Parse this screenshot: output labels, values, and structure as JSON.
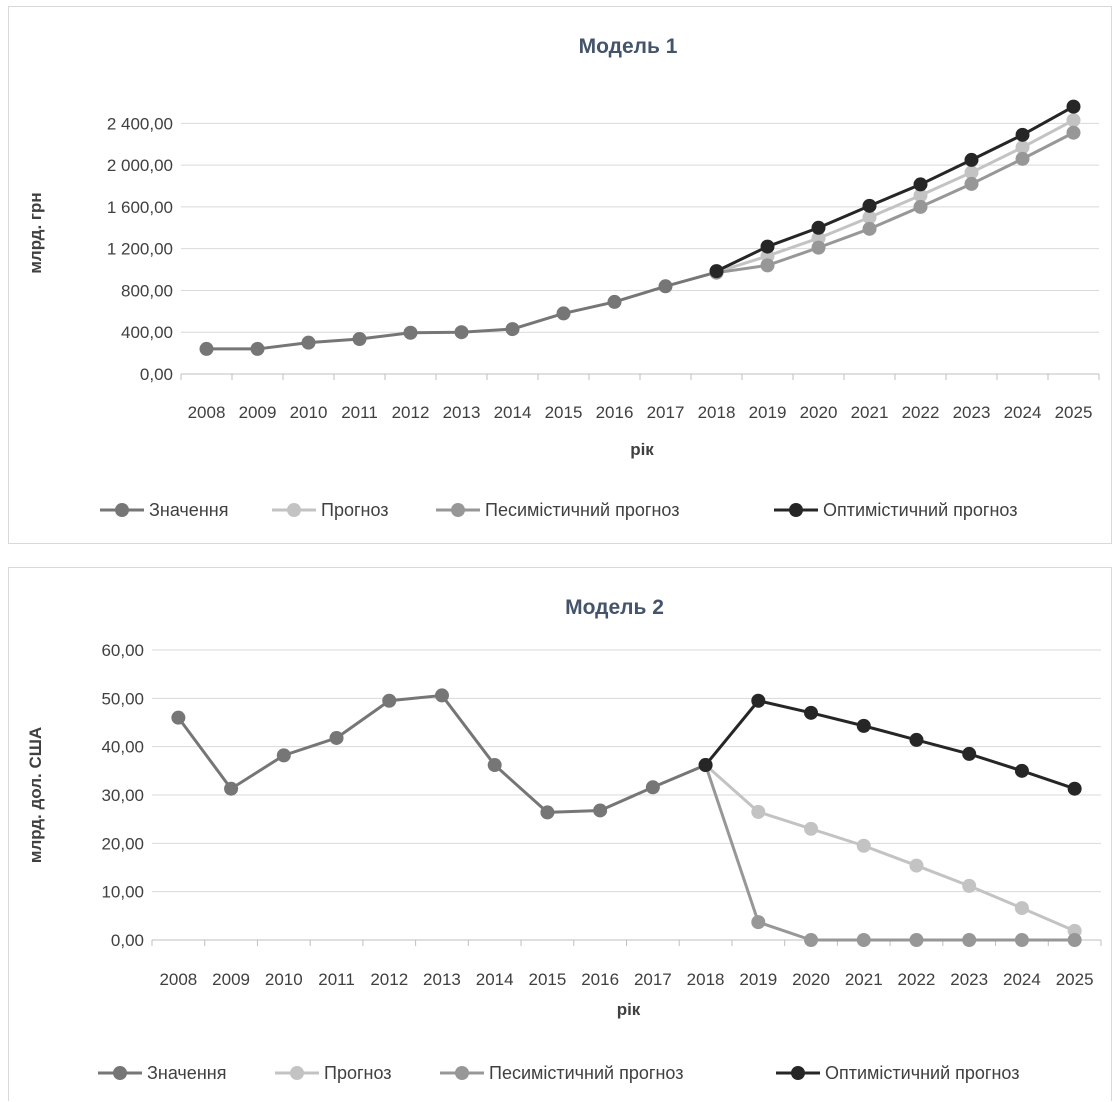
{
  "chart_data": [
    {
      "type": "line",
      "title": "Модель 1",
      "xlabel": "рік",
      "ylabel": "млрд. грн",
      "categories": [
        "2008",
        "2009",
        "2010",
        "2011",
        "2012",
        "2013",
        "2014",
        "2015",
        "2016",
        "2017",
        "2018",
        "2019",
        "2020",
        "2021",
        "2022",
        "2023",
        "2024",
        "2025"
      ],
      "y_ticks": [
        "0,00",
        "400,00",
        "800,00",
        "1 200,00",
        "1 600,00",
        "2 000,00",
        "2 400,00"
      ],
      "ylim": [
        0,
        2700
      ],
      "grid": true,
      "legend": "bottom",
      "series": [
        {
          "name": "Значення",
          "color": "#767676",
          "values": [
            240,
            240,
            300,
            335,
            395,
            400,
            430,
            580,
            690,
            840,
            975,
            null,
            null,
            null,
            null,
            null,
            null,
            null
          ]
        },
        {
          "name": "Прогноз",
          "color": "#c3c3c3",
          "values": [
            null,
            null,
            null,
            null,
            null,
            null,
            null,
            null,
            null,
            null,
            975,
            1130,
            1300,
            1500,
            1710,
            1930,
            2170,
            2430
          ]
        },
        {
          "name": "Песимістичний прогноз",
          "color": "#979797",
          "values": [
            null,
            null,
            null,
            null,
            null,
            null,
            null,
            null,
            null,
            null,
            970,
            1040,
            1210,
            1390,
            1600,
            1820,
            2060,
            2310
          ]
        },
        {
          "name": "Оптимістичний прогноз",
          "color": "#262626",
          "values": [
            null,
            null,
            null,
            null,
            null,
            null,
            null,
            null,
            null,
            null,
            985,
            1220,
            1400,
            1610,
            1815,
            2050,
            2290,
            2560
          ]
        }
      ]
    },
    {
      "type": "line",
      "title": "Модель 2",
      "xlabel": "рік",
      "ylabel": "млрд. дол. США",
      "categories": [
        "2008",
        "2009",
        "2010",
        "2011",
        "2012",
        "2013",
        "2014",
        "2015",
        "2016",
        "2017",
        "2018",
        "2019",
        "2020",
        "2021",
        "2022",
        "2023",
        "2024",
        "2025"
      ],
      "y_ticks": [
        "0,00",
        "10,00",
        "20,00",
        "30,00",
        "40,00",
        "50,00",
        "60,00"
      ],
      "ylim": [
        0,
        60
      ],
      "grid": true,
      "legend": "bottom",
      "series": [
        {
          "name": "Значення",
          "color": "#767676",
          "values": [
            46,
            31.3,
            38.2,
            41.8,
            49.5,
            50.6,
            36.2,
            26.4,
            26.8,
            31.6,
            36.2,
            null,
            null,
            null,
            null,
            null,
            null,
            null
          ]
        },
        {
          "name": "Прогноз",
          "color": "#c3c3c3",
          "values": [
            null,
            null,
            null,
            null,
            null,
            null,
            null,
            null,
            null,
            null,
            36.2,
            26.5,
            23,
            19.5,
            15.4,
            11.2,
            6.6,
            1.9
          ]
        },
        {
          "name": "Песимістичний прогноз",
          "color": "#979797",
          "values": [
            null,
            null,
            null,
            null,
            null,
            null,
            null,
            null,
            null,
            null,
            36.2,
            3.7,
            0,
            0,
            0,
            0,
            0,
            0
          ]
        },
        {
          "name": "Оптимістичний прогноз",
          "color": "#262626",
          "values": [
            null,
            null,
            null,
            null,
            null,
            null,
            null,
            null,
            null,
            null,
            36.2,
            49.5,
            47,
            44.3,
            41.4,
            38.5,
            35,
            31.3
          ]
        }
      ]
    }
  ]
}
